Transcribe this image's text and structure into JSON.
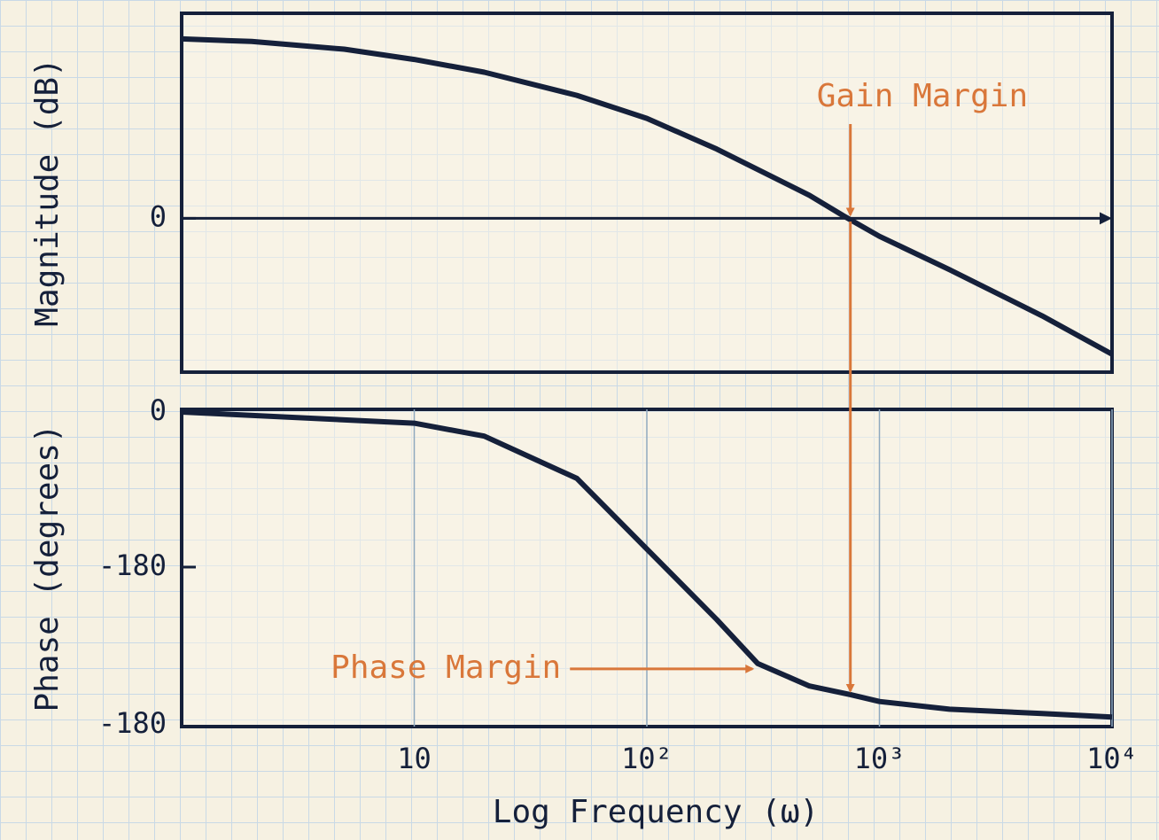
{
  "chart_data": [
    {
      "type": "line",
      "xscale": "log",
      "ylabel": "Magnitude (dB)",
      "x": [
        1,
        2,
        5,
        10,
        20,
        50,
        100,
        200,
        500,
        700,
        1000,
        2000,
        5000,
        10000
      ],
      "values": [
        70,
        69,
        66,
        62,
        57,
        48,
        39,
        27,
        9,
        1,
        -7,
        -20,
        -38,
        -53
      ],
      "color": "#15203a",
      "xlim": [
        1,
        10000
      ],
      "ylim": [
        -60,
        80
      ],
      "yticks": [
        0
      ],
      "zero_line": true,
      "annotations": [
        {
          "text": "Gain Margin",
          "x": 750,
          "y": 0,
          "color": "#d9773a"
        }
      ]
    },
    {
      "type": "line",
      "xscale": "log",
      "ylabel": "Phase (degrees)",
      "xlabel": "Log Frequency (ω)",
      "x": [
        1,
        10,
        20,
        50,
        100,
        200,
        300,
        500,
        750,
        1000,
        2000,
        5000,
        10000
      ],
      "values": [
        0,
        -13,
        -28,
        -77,
        -159,
        -241,
        -292,
        -318,
        -328,
        -336,
        -345,
        -350,
        -354
      ],
      "color": "#15203a",
      "xlim": [
        1,
        10000
      ],
      "ylim": [
        -360,
        0
      ],
      "yticks": [
        0,
        -180
      ],
      "bottom_label": "-180",
      "xticks": [
        10,
        {
          "value": 100,
          "label": "10²"
        },
        {
          "value": 1000,
          "label": "10³"
        },
        {
          "value": 10000,
          "label": "10⁴"
        }
      ],
      "annotations": [
        {
          "text": "Phase Margin",
          "x": 300,
          "y": -292,
          "color": "#d9773a"
        },
        {
          "x": 750,
          "y": -328,
          "color": "#d9773a"
        }
      ]
    }
  ]
}
